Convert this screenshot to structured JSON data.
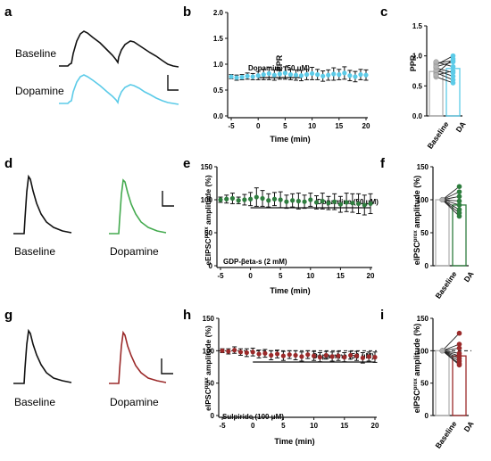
{
  "panel_letters": [
    "a",
    "b",
    "c",
    "d",
    "e",
    "f",
    "g",
    "h",
    "i"
  ],
  "colors": {
    "black": "#111111",
    "baseline_gray": "#b3b3b3",
    "cyan": "#5ccbe8",
    "green": "#2e7d3e",
    "red": "#9b2a2a"
  },
  "row1": {
    "trace_labels": [
      "Baseline",
      "Dopamine"
    ],
    "ppr_time": {
      "ylabel": "PPR",
      "xlabel": "Time (min)",
      "drug_label": "Dopamine (50 μM)"
    },
    "ppr_bar": {
      "ylabel": "PPR",
      "categories": [
        "Baseline",
        "DA"
      ]
    }
  },
  "row2": {
    "trace_labels": [
      "Baseline",
      "Dopamine"
    ],
    "amp_time": {
      "ylabel_main": "eEIPSC",
      "ylabel_sup": "prox",
      "ylabel_rest": " amplitude (%)",
      "xlabel": "Time (min)",
      "drug_label": "Dopamine (50 μM)",
      "condition_label": "GDP-βeta-s (2 mM)"
    },
    "amp_bar": {
      "ylabel_main": "eIPSC",
      "ylabel_sup": "prox",
      "ylabel_rest": " amplitude (%)",
      "categories": [
        "Baseline",
        "DA"
      ]
    }
  },
  "row3": {
    "trace_labels": [
      "Baseline",
      "Dopamine"
    ],
    "amp_time": {
      "ylabel_main": "eIPSC",
      "ylabel_sup": "prox",
      "ylabel_rest": " amplitude (%)",
      "xlabel": "Time (min)",
      "drug_label": "Dopamine (50 μM)",
      "condition_label": "Sulpiride (100 μM)"
    },
    "amp_bar": {
      "ylabel_main": "eIPSC",
      "ylabel_sup": "prox",
      "ylabel_rest": " amplitude (%)",
      "categories": [
        "Baseline",
        "DA"
      ]
    }
  },
  "chart_data": [
    {
      "id": "b",
      "type": "scatter",
      "xlabel": "Time (min)",
      "ylabel": "PPR",
      "xlim": [
        -5,
        20
      ],
      "ylim": [
        0,
        2
      ],
      "xticks": [
        -5,
        0,
        5,
        10,
        15,
        20
      ],
      "yticks": [
        0,
        0.5,
        1.0,
        1.5,
        2.0
      ],
      "drug_bar": {
        "label": "Dopamine (50 μM)",
        "start": 0,
        "end": 8
      },
      "x": [
        -5,
        -4,
        -3,
        -2,
        -1,
        0,
        1,
        2,
        3,
        4,
        5,
        6,
        7,
        8,
        9,
        10,
        11,
        12,
        13,
        14,
        15,
        16,
        17,
        18,
        19,
        20
      ],
      "y": [
        0.76,
        0.74,
        0.75,
        0.77,
        0.76,
        0.78,
        0.8,
        0.82,
        0.79,
        0.81,
        0.83,
        0.8,
        0.79,
        0.78,
        0.8,
        0.82,
        0.8,
        0.77,
        0.79,
        0.81,
        0.8,
        0.83,
        0.78,
        0.76,
        0.8,
        0.79
      ],
      "err": [
        0.04,
        0.05,
        0.05,
        0.06,
        0.06,
        0.08,
        0.1,
        0.12,
        0.1,
        0.1,
        0.12,
        0.1,
        0.1,
        0.1,
        0.1,
        0.12,
        0.1,
        0.1,
        0.1,
        0.12,
        0.1,
        0.12,
        0.1,
        0.1,
        0.1,
        0.1
      ]
    },
    {
      "id": "c",
      "type": "bar",
      "ylabel": "PPR",
      "categories": [
        "Baseline",
        "DA"
      ],
      "values": [
        0.74,
        0.79
      ],
      "ylim": [
        0,
        1.5
      ],
      "yticks": [
        0,
        0.5,
        1.0,
        1.5
      ],
      "paired_points": [
        [
          0.72,
          0.6
        ],
        [
          0.88,
          0.92
        ],
        [
          0.8,
          0.72
        ],
        [
          0.7,
          0.95
        ],
        [
          0.85,
          1.0
        ],
        [
          0.65,
          0.55
        ],
        [
          0.9,
          0.82
        ],
        [
          0.76,
          0.66
        ],
        [
          0.68,
          0.75
        ],
        [
          0.82,
          0.9
        ]
      ]
    },
    {
      "id": "e",
      "type": "scatter",
      "xlabel": "Time (min)",
      "ylabel": "eEIPSC prox amplitude (%)",
      "xlim": [
        -5,
        20
      ],
      "ylim": [
        0,
        150
      ],
      "xticks": [
        -5,
        0,
        5,
        10,
        15,
        20
      ],
      "yticks": [
        0,
        50,
        100,
        150
      ],
      "drug_bar": {
        "label": "Dopamine (50 μM)",
        "start": 0,
        "end": 20
      },
      "x": [
        -5,
        -4,
        -3,
        -2,
        -1,
        0,
        1,
        2,
        3,
        4,
        5,
        6,
        7,
        8,
        9,
        10,
        11,
        12,
        13,
        14,
        15,
        16,
        17,
        18,
        19,
        20
      ],
      "y": [
        100,
        101,
        102,
        99,
        100,
        101,
        104,
        102,
        99,
        101,
        100,
        97,
        99,
        98,
        97,
        100,
        96,
        98,
        95,
        97,
        93,
        96,
        95,
        94,
        92,
        94
      ],
      "err": [
        4,
        6,
        8,
        5,
        8,
        10,
        14,
        12,
        10,
        10,
        12,
        10,
        10,
        12,
        10,
        10,
        10,
        12,
        10,
        12,
        12,
        14,
        14,
        15,
        15,
        15
      ]
    },
    {
      "id": "f",
      "type": "bar",
      "ylabel": "eIPSC prox amplitude (%)",
      "categories": [
        "Baseline",
        "DA"
      ],
      "values": [
        100,
        92
      ],
      "ylim": [
        0,
        150
      ],
      "yticks": [
        0,
        50,
        100,
        150
      ],
      "paired_points": [
        [
          100,
          120
        ],
        [
          100,
          112
        ],
        [
          100,
          105
        ],
        [
          100,
          98
        ],
        [
          100,
          92
        ],
        [
          100,
          85
        ],
        [
          100,
          80
        ],
        [
          100,
          75
        ]
      ]
    },
    {
      "id": "h",
      "type": "scatter",
      "xlabel": "Time (min)",
      "ylabel": "eIPSC prox amplitude (%)",
      "xlim": [
        -5,
        20
      ],
      "ylim": [
        0,
        150
      ],
      "xticks": [
        -5,
        0,
        5,
        10,
        15,
        20
      ],
      "yticks": [
        0,
        50,
        100,
        150
      ],
      "reference_line": 100,
      "drug_bar": {
        "label": "Dopamine (50 μM)",
        "start": 0,
        "end": 20
      },
      "x": [
        -5,
        -4,
        -3,
        -2,
        -1,
        0,
        1,
        2,
        3,
        4,
        5,
        6,
        7,
        8,
        9,
        10,
        11,
        12,
        13,
        14,
        15,
        16,
        17,
        18,
        19,
        20
      ],
      "y": [
        100,
        99,
        101,
        98,
        97,
        98,
        95,
        96,
        93,
        95,
        92,
        94,
        93,
        91,
        94,
        92,
        90,
        93,
        91,
        92,
        90,
        93,
        92,
        89,
        91,
        90
      ],
      "err": [
        3,
        4,
        5,
        5,
        6,
        6,
        6,
        6,
        7,
        6,
        7,
        6,
        7,
        7,
        6,
        7,
        7,
        6,
        7,
        7,
        7,
        6,
        7,
        8,
        7,
        8
      ]
    },
    {
      "id": "i",
      "type": "bar",
      "ylabel": "eIPSC prox amplitude (%)",
      "categories": [
        "Baseline",
        "DA"
      ],
      "values": [
        100,
        92
      ],
      "ylim": [
        0,
        150
      ],
      "yticks": [
        0,
        50,
        100,
        150
      ],
      "reference_line": 100,
      "paired_points": [
        [
          100,
          127
        ],
        [
          100,
          110
        ],
        [
          100,
          104
        ],
        [
          100,
          96
        ],
        [
          100,
          92
        ],
        [
          100,
          88
        ],
        [
          100,
          84
        ],
        [
          100,
          80
        ],
        [
          100,
          78
        ]
      ]
    }
  ]
}
